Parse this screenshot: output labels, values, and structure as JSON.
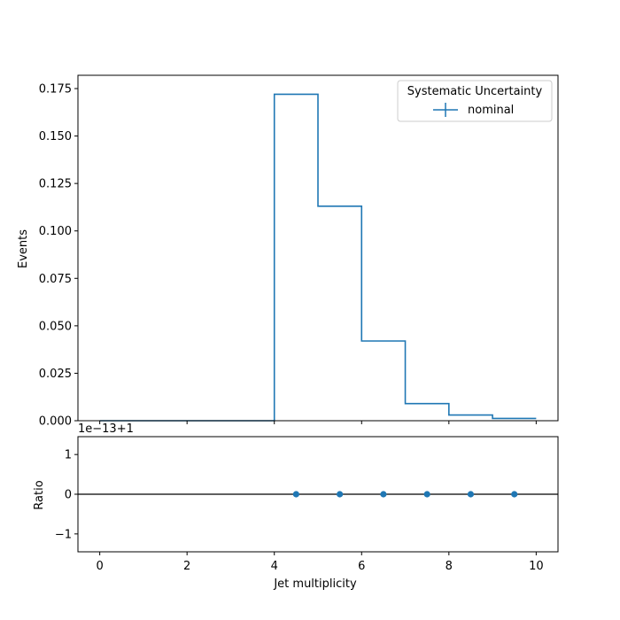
{
  "chart_data": [
    {
      "type": "line",
      "drawstyle": "steps",
      "ylabel": "Events",
      "xlim": [
        -0.5,
        10.5
      ],
      "ylim": [
        0,
        0.182
      ],
      "y_ticks": [
        0.0,
        0.025,
        0.05,
        0.075,
        0.1,
        0.125,
        0.15,
        0.175
      ],
      "y_tick_labels": [
        "0.000",
        "0.025",
        "0.050",
        "0.075",
        "0.100",
        "0.125",
        "0.150",
        "0.175"
      ],
      "x_ticks": [
        0,
        2,
        4,
        6,
        8,
        10
      ],
      "bin_edges": [
        0,
        1,
        2,
        3,
        4,
        5,
        6,
        7,
        8,
        9,
        10
      ],
      "series": [
        {
          "name": "nominal",
          "color": "#1f77b4",
          "values": [
            0,
            0,
            0,
            0,
            0.172,
            0.113,
            0.042,
            0.009,
            0.003,
            0.0012
          ]
        }
      ],
      "legend": {
        "title": "Systematic Uncertainty",
        "placement": "top-right",
        "entries": [
          "nominal"
        ]
      },
      "grid": false
    },
    {
      "type": "scatter",
      "xlabel": "Jet multiplicity",
      "ylabel": "Ratio",
      "offset_label": "1e−13+1",
      "xlim": [
        -0.5,
        10.5
      ],
      "ylim": [
        -1.45,
        1.45
      ],
      "y_ticks": [
        -1,
        0,
        1
      ],
      "y_tick_labels": [
        "−1",
        "0",
        "1"
      ],
      "x_ticks": [
        0,
        2,
        4,
        6,
        8,
        10
      ],
      "x_tick_labels": [
        "0",
        "2",
        "4",
        "6",
        "8",
        "10"
      ],
      "reference_line": 0,
      "series": [
        {
          "color": "#1f77b4",
          "x": [
            4.5,
            5.5,
            6.5,
            7.5,
            8.5,
            9.5
          ],
          "y": [
            0,
            0,
            0,
            0,
            0,
            0
          ]
        }
      ],
      "grid": false
    }
  ]
}
